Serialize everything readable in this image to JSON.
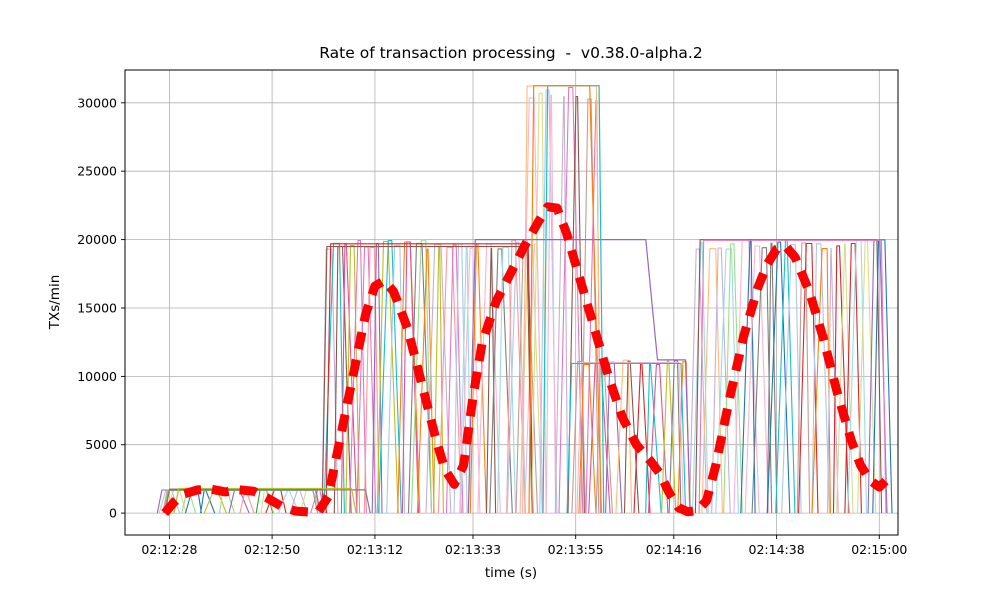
{
  "chart_data": {
    "type": "line",
    "title": "Rate of transaction processing  -  v0.38.0-alpha.2",
    "xlabel": "time (s)",
    "ylabel": "TXs/min",
    "grid": true,
    "legend": "none",
    "xlim": [
      -2.5,
      163
    ],
    "ylim": [
      -1600,
      32400
    ],
    "x_ticks": [
      {
        "t": 7,
        "label": "02:12:28"
      },
      {
        "t": 29,
        "label": "02:12:50"
      },
      {
        "t": 51,
        "label": "02:13:12"
      },
      {
        "t": 72,
        "label": "02:13:33"
      },
      {
        "t": 94,
        "label": "02:13:55"
      },
      {
        "t": 115,
        "label": "02:14:16"
      },
      {
        "t": 137,
        "label": "02:14:38"
      },
      {
        "t": 159,
        "label": "02:15:00"
      }
    ],
    "y_ticks": [
      0,
      5000,
      10000,
      15000,
      20000,
      25000,
      30000
    ],
    "grid_color": "#b0b0b0",
    "palette": [
      "#1f77b4",
      "#ff7f0e",
      "#2ca02c",
      "#d62728",
      "#9467bd",
      "#8c564b",
      "#e377c2",
      "#7f7f7f",
      "#bcbd22",
      "#17becf",
      "#aec7e8",
      "#ffbb78",
      "#98df8a",
      "#ff9896",
      "#c5b0d5",
      "#c49c94",
      "#f7b6d2",
      "#dbdb8d",
      "#9edae5",
      "#e05290"
    ],
    "phases": [
      {
        "t_start": 5,
        "t_end": 40,
        "cap": 1750,
        "spikes": 16,
        "plateaus": 5
      },
      {
        "t_start": 40,
        "t_end": 86,
        "cap": 20000,
        "spikes": 34,
        "plateaus": 2
      },
      {
        "t_start": 83,
        "t_end": 99,
        "cap": 31250,
        "spikes": 9,
        "plateaus": 1
      },
      {
        "t_start": 93,
        "t_end": 118,
        "cap": 11200,
        "spikes": 13,
        "plateaus": 2
      },
      {
        "t_start": 119,
        "t_end": 160,
        "cap": 20000,
        "spikes": 26,
        "plateaus": 2
      }
    ],
    "special_lines": [
      {
        "name": "plateau-20000-to-11200",
        "color": "#9467bd",
        "points": [
          [
            71,
            0
          ],
          [
            72.5,
            20000
          ],
          [
            109,
            20000
          ],
          [
            111.5,
            11200
          ],
          [
            117.5,
            11200
          ],
          [
            118.5,
            0
          ]
        ]
      },
      {
        "name": "plateau-31250-cyan",
        "color": "#17becf",
        "points": [
          [
            87,
            0
          ],
          [
            88,
            31250
          ],
          [
            99,
            31250
          ],
          [
            100,
            0
          ]
        ]
      },
      {
        "name": "plateau-31250-orange",
        "color": "#ff7f0e",
        "points": [
          [
            84,
            0
          ],
          [
            85,
            31250
          ],
          [
            97,
            31250
          ],
          [
            99.5,
            0
          ]
        ]
      },
      {
        "name": "plateau-1700-gray",
        "color": "#7f7f7f",
        "points": [
          [
            6,
            0
          ],
          [
            7,
            1700
          ],
          [
            49,
            1700
          ],
          [
            50,
            0
          ]
        ]
      },
      {
        "name": "plateau-1800-olive",
        "color": "#bcbd22",
        "points": [
          [
            8,
            0
          ],
          [
            9,
            1800
          ],
          [
            46,
            1800
          ],
          [
            47,
            0
          ]
        ]
      }
    ],
    "trend": {
      "name": "red-dashed-envelope",
      "color": "#ff0000",
      "width": 9,
      "dash": "17 11",
      "points": [
        [
          6,
          0
        ],
        [
          8,
          800
        ],
        [
          10,
          1400
        ],
        [
          13,
          1700
        ],
        [
          16,
          1750
        ],
        [
          19,
          1550
        ],
        [
          22,
          1700
        ],
        [
          25,
          1600
        ],
        [
          28,
          1100
        ],
        [
          31,
          500
        ],
        [
          34,
          150
        ],
        [
          37,
          80
        ],
        [
          39,
          150
        ],
        [
          41,
          1200
        ],
        [
          43,
          4500
        ],
        [
          46,
          9500
        ],
        [
          49,
          14500
        ],
        [
          51,
          16600
        ],
        [
          53,
          17000
        ],
        [
          55,
          16200
        ],
        [
          58,
          13500
        ],
        [
          61,
          9500
        ],
        [
          64,
          5500
        ],
        [
          66,
          3200
        ],
        [
          68,
          2100
        ],
        [
          70,
          3500
        ],
        [
          72,
          8500
        ],
        [
          74,
          12500
        ],
        [
          77,
          15500
        ],
        [
          80,
          17500
        ],
        [
          83,
          19500
        ],
        [
          86,
          21300
        ],
        [
          88,
          22400
        ],
        [
          90,
          22300
        ],
        [
          92,
          20500
        ],
        [
          95,
          17000
        ],
        [
          98,
          13500
        ],
        [
          101,
          10000
        ],
        [
          104,
          7000
        ],
        [
          107,
          5000
        ],
        [
          110,
          3800
        ],
        [
          112,
          2900
        ],
        [
          114,
          1500
        ],
        [
          116,
          400
        ],
        [
          118,
          100
        ],
        [
          120,
          200
        ],
        [
          122,
          900
        ],
        [
          124,
          3500
        ],
        [
          127,
          8500
        ],
        [
          130,
          13000
        ],
        [
          133,
          16500
        ],
        [
          135,
          18200
        ],
        [
          137,
          19300
        ],
        [
          139,
          19500
        ],
        [
          141,
          18700
        ],
        [
          144,
          16200
        ],
        [
          147,
          12800
        ],
        [
          150,
          8800
        ],
        [
          153,
          5300
        ],
        [
          155,
          3500
        ],
        [
          157,
          2400
        ],
        [
          159,
          1900
        ],
        [
          160.5,
          2400
        ]
      ]
    }
  }
}
